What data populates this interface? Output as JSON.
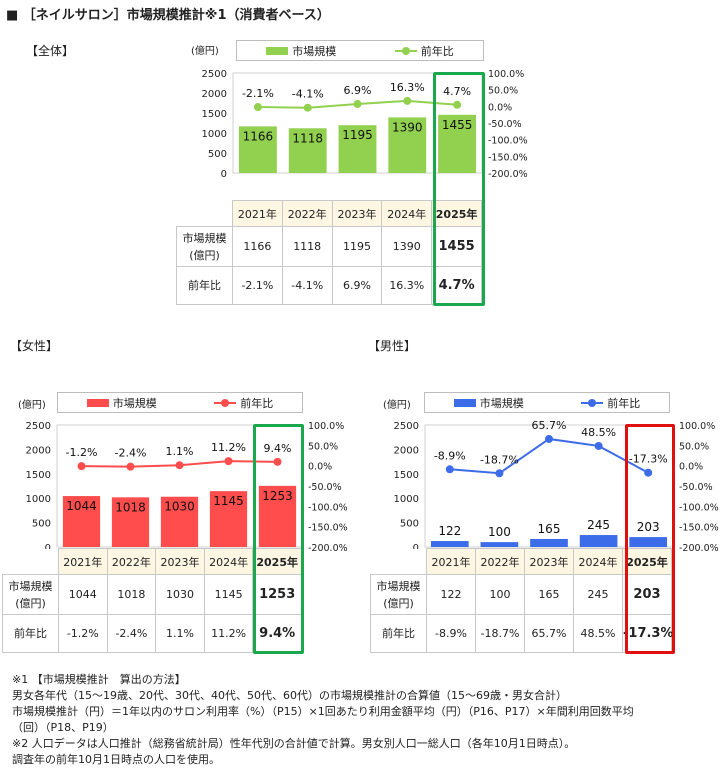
{
  "title": "■ ［ネイルサロン］市場規模推計※1（消費者ベース）",
  "colors": {
    "total": "#92d050",
    "female": "#ff4d4d",
    "male": "#3d6ce8",
    "highlight_green": "#1aa84f",
    "highlight_red": "#e01010"
  },
  "sections": {
    "total": {
      "label": "【全体】",
      "unit": "(億円)",
      "legend_bar": "市場規模",
      "legend_line": "前年比"
    },
    "female": {
      "label": "【女性】",
      "unit": "(億円)",
      "legend_bar": "市場規模",
      "legend_line": "前年比"
    },
    "male": {
      "label": "【男性】",
      "unit": "(億円)",
      "legend_bar": "市場規模",
      "legend_line": "前年比"
    }
  },
  "table": {
    "row1_line1": "市場規模",
    "row1_line2": "(億円)",
    "row2": "前年比",
    "years": [
      "2021年",
      "2022年",
      "2023年",
      "2024年",
      "2025年"
    ],
    "total_sizes": [
      "1166",
      "1118",
      "1195",
      "1390",
      "1455"
    ],
    "total_yoy": [
      "-2.1%",
      "-4.1%",
      "6.9%",
      "16.3%",
      "4.7%"
    ],
    "female_sizes": [
      "1044",
      "1018",
      "1030",
      "1145",
      "1253"
    ],
    "female_yoy": [
      "-1.2%",
      "-2.4%",
      "1.1%",
      "11.2%",
      "9.4%"
    ],
    "male_sizes": [
      "122",
      "100",
      "165",
      "245",
      "203"
    ],
    "male_yoy": [
      "-8.9%",
      "-18.7%",
      "65.7%",
      "48.5%",
      "-17.3%"
    ]
  },
  "notes": [
    "※1 【市場規模推計　算出の方法】",
    "男女各年代（15～19歳、20代、30代、40代、50代、60代）の市場規模推計の合算値（15～69歳・男女合計）",
    "市場規模推計（円）＝1年以内のサロン利用率（%）（P15）×1回あたり利用金額平均（円）（P16、P17）×年間利用回数平均",
    "（回）（P18、P19）",
    "※2 人口データは人口推計（総務省統計局）性年代別の合計値で計算。男女別人口一総人口（各年10月1日時点）。",
    "調査年の前年10月1日時点の人口を使用。"
  ],
  "chart_data": [
    {
      "type": "bar",
      "title": "全体",
      "categories": [
        "2021年",
        "2022年",
        "2023年",
        "2024年",
        "2025年"
      ],
      "series": [
        {
          "name": "市場規模",
          "type": "bar",
          "axis": "left",
          "values": [
            1166,
            1118,
            1195,
            1390,
            1455
          ]
        },
        {
          "name": "前年比",
          "type": "line",
          "axis": "right",
          "values": [
            -2.1,
            -4.1,
            6.9,
            16.3,
            4.7
          ],
          "labels": [
            "-2.1%",
            "-4.1%",
            "6.9%",
            "16.3%",
            "4.7%"
          ]
        }
      ],
      "ylabel": "(億円)",
      "ylim": [
        0,
        2500
      ],
      "yticks": [
        "2500",
        "2000",
        "1500",
        "1000",
        "500",
        "0"
      ],
      "y2lim": [
        -200,
        100
      ],
      "y2ticks": [
        "100.0%",
        "50.0%",
        "0.0%",
        "-50.0%",
        "-100.0%",
        "-150.0%",
        "-200.0%"
      ],
      "legend": "top"
    },
    {
      "type": "bar",
      "title": "女性",
      "categories": [
        "2021年",
        "2022年",
        "2023年",
        "2024年",
        "2025年"
      ],
      "series": [
        {
          "name": "市場規模",
          "type": "bar",
          "axis": "left",
          "values": [
            1044,
            1018,
            1030,
            1145,
            1253
          ]
        },
        {
          "name": "前年比",
          "type": "line",
          "axis": "right",
          "values": [
            -1.2,
            -2.4,
            1.1,
            11.2,
            9.4
          ],
          "labels": [
            "-1.2%",
            "-2.4%",
            "1.1%",
            "11.2%",
            "9.4%"
          ]
        }
      ],
      "ylabel": "(億円)",
      "ylim": [
        0,
        2500
      ],
      "yticks": [
        "2500",
        "2000",
        "1500",
        "1000",
        "500",
        "0"
      ],
      "y2lim": [
        -200,
        100
      ],
      "y2ticks": [
        "100.0%",
        "50.0%",
        "0.0%",
        "-50.0%",
        "-100.0%",
        "-150.0%",
        "-200.0%"
      ],
      "legend": "top"
    },
    {
      "type": "bar",
      "title": "男性",
      "categories": [
        "2021年",
        "2022年",
        "2023年",
        "2024年",
        "2025年"
      ],
      "series": [
        {
          "name": "市場規模",
          "type": "bar",
          "axis": "left",
          "values": [
            122,
            100,
            165,
            245,
            203
          ]
        },
        {
          "name": "前年比",
          "type": "line",
          "axis": "right",
          "values": [
            -8.9,
            -18.7,
            65.7,
            48.5,
            -17.3
          ],
          "labels": [
            "-8.9%",
            "-18.7%",
            "65.7%",
            "48.5%",
            "-17.3%"
          ]
        }
      ],
      "ylabel": "(億円)",
      "ylim": [
        0,
        2500
      ],
      "yticks": [
        "2500",
        "2000",
        "1500",
        "1000",
        "500",
        "0"
      ],
      "y2lim": [
        -200,
        100
      ],
      "y2ticks": [
        "100.0%",
        "50.0%",
        "0.0%",
        "-50.0%",
        "-100.0%",
        "-150.0%",
        "-200.0%"
      ],
      "legend": "top"
    }
  ]
}
